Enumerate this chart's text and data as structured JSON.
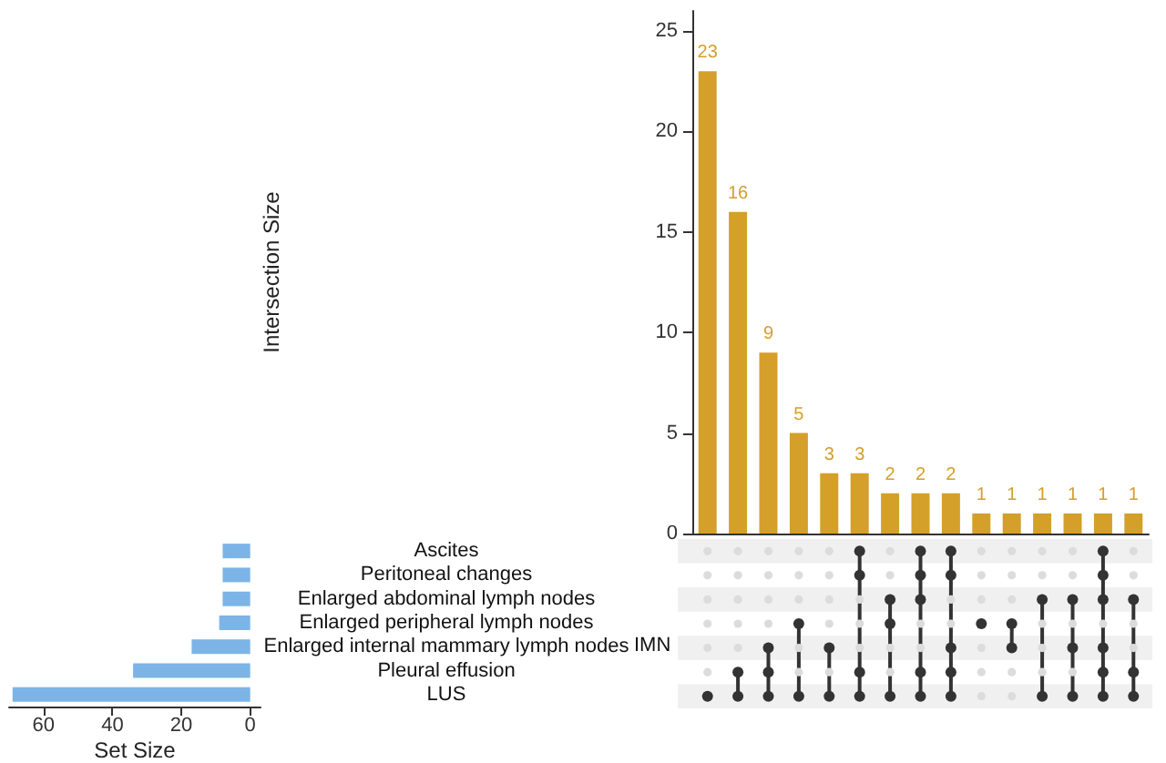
{
  "chart_data": [
    {
      "type": "bar",
      "ylabel": "Intersection Size",
      "categories": [
        null,
        null,
        null,
        null,
        null,
        null,
        null,
        null,
        null,
        null,
        null,
        null,
        null,
        null,
        null
      ],
      "values": [
        23,
        16,
        9,
        5,
        3,
        3,
        2,
        2,
        2,
        1,
        1,
        1,
        1,
        1,
        1
      ],
      "color": "#d4a02a",
      "data_labels": true,
      "ylim": [
        0,
        26
      ],
      "yticks": [
        0,
        5,
        10,
        15,
        20,
        25
      ],
      "grid": false,
      "tick_labels": "y"
    },
    {
      "type": "bar",
      "orientation": "horizontal",
      "xlabel": "Set Size",
      "categories": [
        "Ascites",
        "Peritoneal changes",
        "Enlarged abdominal lymph nodes",
        "Enlarged peripheral lymph nodes",
        "Enlarged internal mammary lymph nodes",
        "Pleural effusion",
        "LUS"
      ],
      "values": [
        8,
        8,
        8,
        9,
        17,
        34,
        69
      ],
      "color": "#7cb4e6",
      "xlim": [
        70,
        -3
      ],
      "xticks": [
        60,
        40,
        20,
        0
      ],
      "grid": false,
      "annotations": [
        "IMN"
      ]
    }
  ]
}
